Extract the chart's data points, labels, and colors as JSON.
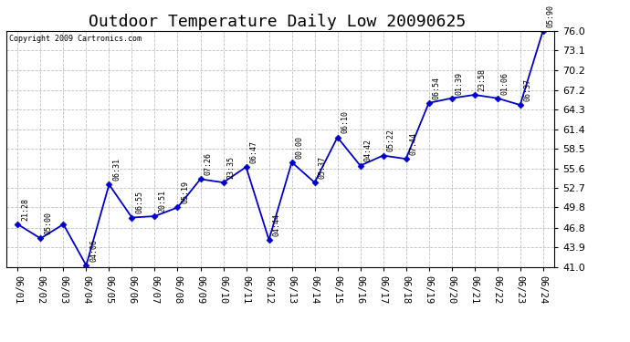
{
  "title": "Outdoor Temperature Daily Low 20090625",
  "copyright": "Copyright 2009 Cartronics.com",
  "x_labels": [
    "06/01",
    "06/02",
    "06/03",
    "06/04",
    "06/05",
    "06/06",
    "06/07",
    "06/08",
    "06/09",
    "06/10",
    "06/11",
    "06/12",
    "06/13",
    "06/14",
    "06/15",
    "06/16",
    "06/17",
    "06/18",
    "06/19",
    "06/20",
    "06/21",
    "06/22",
    "06/23",
    "06/24"
  ],
  "y_values": [
    47.3,
    45.2,
    47.3,
    41.2,
    53.2,
    48.3,
    48.5,
    49.8,
    54.0,
    53.5,
    55.8,
    45.0,
    56.5,
    53.5,
    60.2,
    56.0,
    57.5,
    57.0,
    65.3,
    66.0,
    66.5,
    66.0,
    65.0,
    76.0
  ],
  "point_labels": [
    "21:28",
    "05:00",
    "",
    "04:06",
    "06:31",
    "06:55",
    "20:51",
    "05:19",
    "07:26",
    "23:35",
    "06:47",
    "04:44",
    "00:00",
    "05:37",
    "06:10",
    "04:42",
    "05:22",
    "07:44",
    "06:54",
    "01:39",
    "23:58",
    "01:06",
    "06:37",
    "05:90"
  ],
  "ylim": [
    41.0,
    76.0
  ],
  "yticks": [
    41.0,
    43.9,
    46.8,
    49.8,
    52.7,
    55.6,
    58.5,
    61.4,
    64.3,
    67.2,
    70.2,
    73.1,
    76.0
  ],
  "line_color": "#0000cc",
  "marker_color": "#0000cc",
  "bg_color": "#ffffff",
  "grid_color": "#b0b0b0",
  "title_fontsize": 13,
  "label_fontsize": 7
}
